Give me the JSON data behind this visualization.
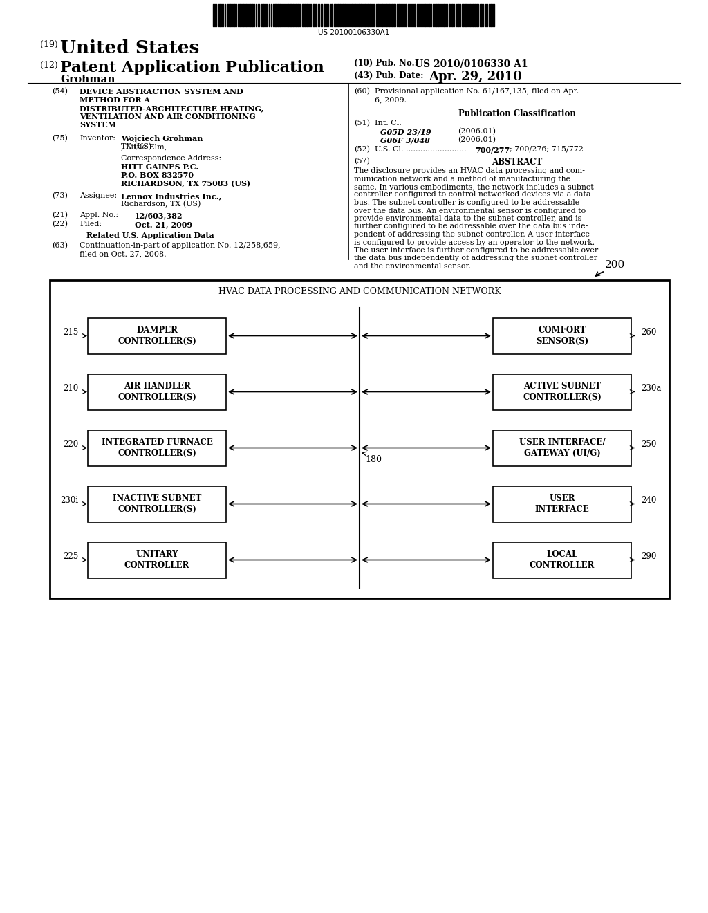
{
  "bg_color": "#ffffff",
  "barcode_text": "US 20100106330A1",
  "field54_label": "(54)",
  "field54_text": "DEVICE ABSTRACTION SYSTEM AND\nMETHOD FOR A\nDISTRIBUTED-ARCHITECTURE HEATING,\nVENTILATION AND AIR CONDITIONING\nSYSTEM",
  "field75_label": "(75)",
  "field75_name": "Inventor:",
  "field60_label": "(60)",
  "field60_text": "Provisional application No. 61/167,135, filed on Apr.\n6, 2009.",
  "pub_class_title": "Publication Classification",
  "field51_label": "(51)",
  "field51_name": "Int. Cl.",
  "field51_class1": "G05D 23/19",
  "field51_year1": "(2006.01)",
  "field51_class2": "G06F 3/048",
  "field51_year2": "(2006.01)",
  "field52_label": "(52)",
  "field52_name": "U.S. Cl.",
  "field52_dots": ".........................",
  "field52_value": "700/277; 700/276; 715/772",
  "field57_label": "(57)",
  "field57_title": "ABSTRACT",
  "field57_text": "The disclosure provides an HVAC data processing and com-\nmunication network and a method of manufacturing the\nsame. In various embodiments, the network includes a subnet\ncontroller configured to control networked devices via a data\nbus. The subnet controller is configured to be addressable\nover the data bus. An environmental sensor is configured to\nprovide environmental data to the subnet controller, and is\nfurther configured to be addressable over the data bus inde-\npendent of addressing the subnet controller. A user interface\nis configured to provide access by an operator to the network.\nThe user interface is further configured to be addressable over\nthe data bus independently of addressing the subnet controller\nand the environmental sensor.",
  "field73_label": "(73)",
  "field73_name": "Assignee:",
  "field21_label": "(21)",
  "field21_name": "Appl. No.:",
  "field21_value": "12/603,382",
  "field22_label": "(22)",
  "field22_name": "Filed:",
  "field22_value": "Oct. 21, 2009",
  "related_label": "Related U.S. Application Data",
  "field63_label": "(63)",
  "field63_text": "Continuation-in-part of application No. 12/258,659,\nfiled on Oct. 27, 2008.",
  "diag_label": "200",
  "diag_title": "HVAC DATA PROCESSING AND COMMUNICATION NETWORK",
  "boxes_left": [
    {
      "label": "DAMPER\nCONTROLLER(S)",
      "id": "215"
    },
    {
      "label": "AIR HANDLER\nCONTROLLER(S)",
      "id": "210"
    },
    {
      "label": "INTEGRATED FURNACE\nCONTROLLER(S)",
      "id": "220"
    },
    {
      "label": "INACTIVE SUBNET\nCONTROLLER(S)",
      "id": "230i"
    },
    {
      "label": "UNITARY\nCONTROLLER",
      "id": "225"
    }
  ],
  "boxes_right": [
    {
      "label": "COMFORT\nSENSOR(S)",
      "id": "260"
    },
    {
      "label": "ACTIVE SUBNET\nCONTROLLER(S)",
      "id": "230a"
    },
    {
      "label": "USER INTERFACE/\nGATEWAY (UI/G)",
      "id": "250"
    },
    {
      "label": "USER\nINTERFACE",
      "id": "240"
    },
    {
      "label": "LOCAL\nCONTROLLER",
      "id": "290"
    }
  ],
  "bus_label": "180"
}
